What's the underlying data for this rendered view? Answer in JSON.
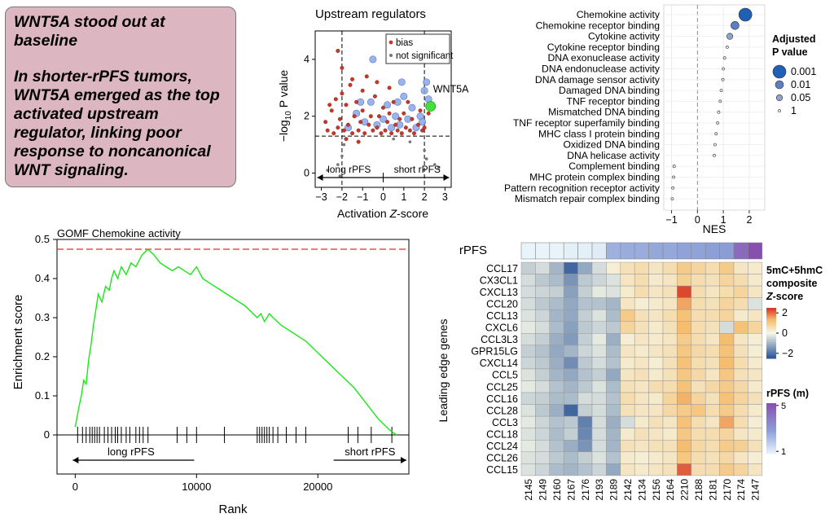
{
  "callout": {
    "line1": "WNT5A stood out at baseline",
    "line2": "In shorter-rPFS tumors, WNT5A emerged as the top activated upstream regulator, linking poor response to noncanonical WNT signaling."
  },
  "chart_data": [
    {
      "id": "volcano",
      "type": "scatter",
      "title": "Upstream regulators",
      "xlabel": "Activation Z-score",
      "ylabel": "−log10 P value",
      "xlim": [
        -3.3,
        3.3
      ],
      "ylim": [
        -0.5,
        5.0
      ],
      "xticks": [
        -3,
        -2,
        -1,
        0,
        1,
        2,
        3
      ],
      "yticks": [
        0,
        2,
        4
      ],
      "threshold_lines": {
        "x": [
          -2,
          2
        ],
        "y": 1.3
      },
      "legend": [
        "bias",
        "not significant"
      ],
      "legend_position": "top-right",
      "arrows": {
        "left": "long rPFS",
        "right": "short rPFS"
      },
      "highlight": {
        "label": "WNT5A",
        "x": 2.3,
        "y": 2.35,
        "color": "#44e03a"
      },
      "bias_points": [
        [
          -2.8,
          1.8
        ],
        [
          -2.7,
          1.5
        ],
        [
          -2.5,
          2.2
        ],
        [
          -2.4,
          1.4
        ],
        [
          -2.3,
          2.6
        ],
        [
          -2.2,
          1.6
        ],
        [
          -2.1,
          1.9
        ],
        [
          -2.0,
          2.8
        ],
        [
          -1.9,
          1.5
        ],
        [
          -1.8,
          2.4
        ],
        [
          -1.7,
          1.7
        ],
        [
          -1.6,
          3.1
        ],
        [
          -1.5,
          1.4
        ],
        [
          -1.4,
          2.0
        ],
        [
          -1.3,
          2.5
        ],
        [
          -1.2,
          1.5
        ],
        [
          -1.1,
          1.8
        ],
        [
          -1.0,
          2.2
        ],
        [
          -0.9,
          1.4
        ],
        [
          -0.8,
          3.4
        ],
        [
          -0.7,
          1.7
        ],
        [
          -0.6,
          2.0
        ],
        [
          -0.5,
          1.5
        ],
        [
          -0.4,
          2.7
        ],
        [
          -0.3,
          1.6
        ],
        [
          -0.2,
          2.0
        ],
        [
          -0.1,
          1.4
        ],
        [
          0.0,
          2.3
        ],
        [
          0.1,
          1.5
        ],
        [
          0.2,
          1.8
        ],
        [
          0.3,
          2.1
        ],
        [
          0.4,
          1.4
        ],
        [
          0.5,
          2.5
        ],
        [
          0.6,
          1.7
        ],
        [
          0.7,
          1.5
        ],
        [
          0.8,
          1.9
        ],
        [
          0.9,
          1.4
        ],
        [
          1.0,
          2.1
        ],
        [
          1.1,
          1.6
        ],
        [
          1.2,
          2.5
        ],
        [
          1.3,
          1.5
        ],
        [
          1.4,
          1.9
        ],
        [
          1.5,
          1.4
        ],
        [
          1.7,
          1.7
        ],
        [
          1.8,
          2.2
        ],
        [
          1.9,
          1.5
        ],
        [
          -2.2,
          4.3
        ],
        [
          -2.0,
          3.7
        ],
        [
          -1.5,
          3.3
        ],
        [
          -1.0,
          2.9
        ],
        [
          -0.3,
          3.2
        ],
        [
          0.3,
          3.0
        ],
        [
          -2.6,
          2.4
        ],
        [
          -1.8,
          1.2
        ],
        [
          -1.2,
          1.1
        ],
        [
          2.0,
          1.6
        ],
        [
          2.2,
          2.1
        ]
      ],
      "ns_points_blue": [
        [
          -1.7,
          1.6
        ],
        [
          -1.3,
          2.1
        ],
        [
          -0.9,
          1.8
        ],
        [
          -0.6,
          2.5
        ],
        [
          -0.3,
          1.7
        ],
        [
          0.0,
          1.9
        ],
        [
          0.2,
          2.4
        ],
        [
          0.4,
          1.6
        ],
        [
          0.6,
          2.0
        ],
        [
          0.8,
          1.7
        ],
        [
          1.0,
          2.7
        ],
        [
          1.2,
          1.9
        ],
        [
          1.4,
          2.3
        ],
        [
          1.6,
          1.6
        ],
        [
          1.8,
          2.0
        ],
        [
          2.0,
          2.9
        ],
        [
          2.1,
          3.2
        ],
        [
          -0.5,
          4.0
        ],
        [
          0.9,
          3.2
        ],
        [
          -1.1,
          2.5
        ],
        [
          0.7,
          2.5
        ],
        [
          1.9,
          1.8
        ],
        [
          2.2,
          2.6
        ]
      ],
      "ns_points_grey": [
        [
          -2.7,
          0.1
        ],
        [
          -2.2,
          0.3
        ],
        [
          -2.0,
          0.6
        ],
        [
          -1.9,
          1.0
        ],
        [
          2.0,
          0.8
        ],
        [
          2.1,
          0.5
        ],
        [
          2.5,
          0.3
        ],
        [
          2.7,
          0.2
        ],
        [
          -2.1,
          -0.1
        ],
        [
          1.3,
          1.1
        ],
        [
          0.5,
          1.2
        ]
      ]
    },
    {
      "id": "gsea_dotplot",
      "type": "scatter",
      "xlabel": "NES",
      "xlim": [
        -1.3,
        2.6
      ],
      "xticks": [
        -1,
        0,
        1,
        2
      ],
      "legend_title": "Adjusted P value",
      "legend": [
        "0.001",
        "0.01",
        "0.05",
        "1"
      ],
      "legend_position": "right",
      "terms": [
        {
          "name": "Chemokine activity",
          "nes": 1.85,
          "p": 0.0005
        },
        {
          "name": "Chemokine receptor binding",
          "nes": 1.45,
          "p": 0.01
        },
        {
          "name": "Cytokine activity",
          "nes": 1.25,
          "p": 0.04
        },
        {
          "name": "Cytokine receptor binding",
          "nes": 1.15,
          "p": 0.5
        },
        {
          "name": "DNA exonuclease activity",
          "nes": 1.05,
          "p": 1
        },
        {
          "name": "DNA endonuclease activity",
          "nes": 1.0,
          "p": 1
        },
        {
          "name": "DNA damage sensor activity",
          "nes": 0.98,
          "p": 1
        },
        {
          "name": "Damaged DNA binding",
          "nes": 0.92,
          "p": 1
        },
        {
          "name": "TNF receptor binding",
          "nes": 0.88,
          "p": 1
        },
        {
          "name": "Mismatched DNA binding",
          "nes": 0.82,
          "p": 1
        },
        {
          "name": "TNF receptor superfamily binding",
          "nes": 0.78,
          "p": 1
        },
        {
          "name": "MHC class I protein binding",
          "nes": 0.72,
          "p": 1
        },
        {
          "name": "Oxidized DNA binding",
          "nes": 0.68,
          "p": 1
        },
        {
          "name": "DNA helicase activity",
          "nes": 0.65,
          "p": 1
        },
        {
          "name": "Complement binding",
          "nes": -0.9,
          "p": 1
        },
        {
          "name": "MHC protein complex binding",
          "nes": -0.92,
          "p": 1
        },
        {
          "name": "Pattern recognition receptor activity",
          "nes": -0.95,
          "p": 1
        },
        {
          "name": "Mismatch repair complex binding",
          "nes": -0.97,
          "p": 1
        }
      ]
    },
    {
      "id": "gsea_enrichment",
      "type": "line",
      "title": "GOMF Chemokine activity",
      "xlabel": "Rank",
      "ylabel": "Enrichment score",
      "xlim": [
        -1500,
        27500
      ],
      "ylim": [
        -0.1,
        0.5
      ],
      "xticks": [
        0,
        10000,
        20000
      ],
      "yticks": [
        0,
        0.1,
        0.2,
        0.3,
        0.4,
        0.5
      ],
      "max_es": 0.475,
      "arrows": {
        "left": "long rPFS",
        "right": "short rPFS"
      },
      "curve": [
        [
          0,
          0.02
        ],
        [
          300,
          0.07
        ],
        [
          500,
          0.1
        ],
        [
          700,
          0.14
        ],
        [
          900,
          0.13
        ],
        [
          1100,
          0.19
        ],
        [
          1300,
          0.23
        ],
        [
          1500,
          0.28
        ],
        [
          1700,
          0.32
        ],
        [
          1900,
          0.36
        ],
        [
          2200,
          0.34
        ],
        [
          2500,
          0.38
        ],
        [
          2800,
          0.37
        ],
        [
          3000,
          0.4
        ],
        [
          3200,
          0.42
        ],
        [
          3500,
          0.4
        ],
        [
          3800,
          0.43
        ],
        [
          4200,
          0.41
        ],
        [
          4600,
          0.44
        ],
        [
          5000,
          0.43
        ],
        [
          5500,
          0.46
        ],
        [
          6000,
          0.475
        ],
        [
          6500,
          0.46
        ],
        [
          7000,
          0.44
        ],
        [
          7500,
          0.43
        ],
        [
          8000,
          0.42
        ],
        [
          8500,
          0.43
        ],
        [
          9000,
          0.42
        ],
        [
          9500,
          0.41
        ],
        [
          10000,
          0.43
        ],
        [
          10500,
          0.4
        ],
        [
          11000,
          0.39
        ],
        [
          12000,
          0.37
        ],
        [
          13000,
          0.35
        ],
        [
          14000,
          0.33
        ],
        [
          15000,
          0.3
        ],
        [
          15300,
          0.31
        ],
        [
          15600,
          0.29
        ],
        [
          16000,
          0.31
        ],
        [
          16300,
          0.3
        ],
        [
          17000,
          0.28
        ],
        [
          18000,
          0.26
        ],
        [
          19000,
          0.24
        ],
        [
          20000,
          0.21
        ],
        [
          21000,
          0.18
        ],
        [
          22000,
          0.15
        ],
        [
          23000,
          0.12
        ],
        [
          24000,
          0.08
        ],
        [
          25000,
          0.04
        ],
        [
          26000,
          0.01
        ],
        [
          26500,
          0.0
        ]
      ],
      "hits": [
        200,
        600,
        900,
        1200,
        1400,
        1600,
        1800,
        2000,
        2400,
        2700,
        3000,
        3300,
        3500,
        3800,
        4200,
        4500,
        5000,
        5300,
        5600,
        6000,
        8400,
        9200,
        10000,
        12300,
        15000,
        15200,
        15400,
        15600,
        15800,
        16000,
        16300,
        16700,
        17400,
        18200,
        19000,
        22500,
        23300,
        24400,
        26100
      ]
    },
    {
      "id": "heatmap",
      "type": "heatmap",
      "ylabel": "Leading edge genes",
      "colorbar_title": "5mC+5hmC composite Z-score",
      "colorbar_ticks": [
        2,
        0,
        -2
      ],
      "annotation_label": "rPFS",
      "annotation_legend_title": "rPFS (m)",
      "annotation_legend_ticks": [
        5,
        1
      ],
      "rows": [
        "CCL17",
        "CX3CL1",
        "CXCL13",
        "CCL20",
        "CCL13",
        "CXCL6",
        "CCL3L3",
        "GPR15LG",
        "CXCL14",
        "CCL5",
        "CCL25",
        "CCL16",
        "CCL28",
        "CCL3",
        "CCL18",
        "CCL24",
        "CCL26",
        "CCL15"
      ],
      "columns": [
        "2145",
        "2149",
        "2160",
        "2167",
        "2176",
        "2193",
        "2189",
        "2142",
        "2134",
        "2156",
        "2164",
        "2210",
        "2188",
        "2181",
        "2170",
        "2174",
        "2147"
      ],
      "rpfs_months": [
        0.8,
        0.8,
        0.8,
        0.9,
        0.9,
        1.0,
        2.4,
        2.5,
        2.5,
        2.6,
        2.6,
        2.7,
        2.7,
        2.8,
        2.9,
        4.4,
        5.2
      ],
      "values": [
        [
          -0.6,
          -0.4,
          -1.0,
          -2.2,
          -1.2,
          -0.4,
          0.2,
          0.5,
          0.6,
          0.4,
          0.6,
          1.0,
          0.8,
          0.6,
          1.0,
          0.4,
          0.3
        ],
        [
          -0.4,
          -0.7,
          -0.9,
          -1.5,
          -0.7,
          -0.5,
          -0.3,
          0.4,
          0.6,
          0.3,
          0.4,
          0.9,
          0.6,
          0.5,
          0.8,
          0.6,
          0.3
        ],
        [
          -0.4,
          -0.5,
          -0.6,
          -1.3,
          -0.6,
          -0.2,
          -0.3,
          0.3,
          0.6,
          0.4,
          0.5,
          2.3,
          0.6,
          0.4,
          0.6,
          0.8,
          0.4
        ],
        [
          -0.4,
          -0.7,
          -0.9,
          -1.2,
          -0.8,
          -0.8,
          -1.0,
          0.4,
          0.2,
          0.3,
          0.4,
          1.5,
          0.6,
          0.5,
          0.8,
          0.6,
          -0.3
        ],
        [
          -0.3,
          -0.5,
          -1.0,
          -1.2,
          -0.6,
          -0.3,
          -0.9,
          1.0,
          0.5,
          0.4,
          0.6,
          1.2,
          0.6,
          0.6,
          0.8,
          0.3,
          0.4
        ],
        [
          -0.2,
          -0.4,
          -0.9,
          -1.3,
          -0.7,
          -0.5,
          -0.7,
          0.8,
          0.5,
          0.3,
          0.5,
          1.3,
          0.6,
          0.5,
          -0.4,
          1.2,
          0.8
        ],
        [
          -0.4,
          -0.6,
          -1.1,
          -1.4,
          -0.6,
          -0.2,
          -1.1,
          0.2,
          0.4,
          0.3,
          0.4,
          1.0,
          0.6,
          0.4,
          1.3,
          0.4,
          0.2
        ],
        [
          -0.6,
          -0.8,
          -1.2,
          -1.0,
          -0.5,
          -0.3,
          -0.9,
          0.4,
          0.3,
          0.4,
          0.5,
          1.1,
          0.7,
          0.6,
          1.2,
          0.5,
          0.2
        ],
        [
          -0.5,
          -0.7,
          -1.1,
          -1.6,
          -0.7,
          -0.4,
          -0.8,
          0.3,
          0.4,
          0.2,
          0.5,
          1.2,
          0.6,
          0.5,
          1.3,
          0.6,
          0.3
        ],
        [
          -0.3,
          -0.6,
          -1.0,
          -1.2,
          -0.8,
          -0.6,
          -1.2,
          0.4,
          0.5,
          0.3,
          0.5,
          1.1,
          0.7,
          0.4,
          1.1,
          0.5,
          0.4
        ],
        [
          -0.2,
          -0.4,
          -0.8,
          -1.0,
          -0.7,
          -0.3,
          -0.9,
          0.5,
          0.4,
          0.6,
          0.6,
          1.2,
          0.5,
          0.7,
          1.0,
          0.7,
          0.3
        ],
        [
          -0.5,
          -0.6,
          -0.9,
          -0.9,
          -0.4,
          -0.4,
          -0.8,
          0.6,
          0.4,
          0.3,
          0.8,
          1.4,
          0.8,
          0.5,
          1.2,
          0.8,
          0.5
        ],
        [
          -0.3,
          -0.7,
          -1.1,
          -2.2,
          -0.6,
          -0.4,
          -0.9,
          0.5,
          0.4,
          0.4,
          0.7,
          1.0,
          1.1,
          0.6,
          1.0,
          0.6,
          0.3
        ],
        [
          -0.2,
          -0.5,
          -0.8,
          -0.7,
          -1.8,
          -0.4,
          -1.1,
          -0.4,
          0.3,
          0.5,
          0.4,
          1.2,
          0.6,
          0.4,
          1.5,
          0.6,
          0.2
        ],
        [
          -0.3,
          -0.5,
          -0.9,
          -0.6,
          -1.7,
          -0.4,
          -1.0,
          0.3,
          0.5,
          0.4,
          0.3,
          1.1,
          0.6,
          0.6,
          0.8,
          0.4,
          0.3
        ],
        [
          -0.2,
          -0.4,
          -0.8,
          -1.1,
          -1.5,
          -0.4,
          -1.0,
          0.5,
          0.4,
          0.5,
          0.5,
          1.3,
          0.7,
          0.6,
          1.0,
          0.9,
          0.5
        ],
        [
          -0.3,
          -0.4,
          -0.7,
          -0.9,
          -0.6,
          -0.3,
          -0.8,
          0.3,
          0.2,
          0.3,
          0.4,
          1.1,
          0.6,
          0.5,
          0.7,
          0.4,
          0.2
        ],
        [
          -0.3,
          -0.5,
          -0.9,
          -1.0,
          -0.8,
          -0.5,
          -1.2,
          0.4,
          0.3,
          0.4,
          0.5,
          2.1,
          0.6,
          0.6,
          1.0,
          0.8,
          0.4
        ]
      ]
    }
  ]
}
